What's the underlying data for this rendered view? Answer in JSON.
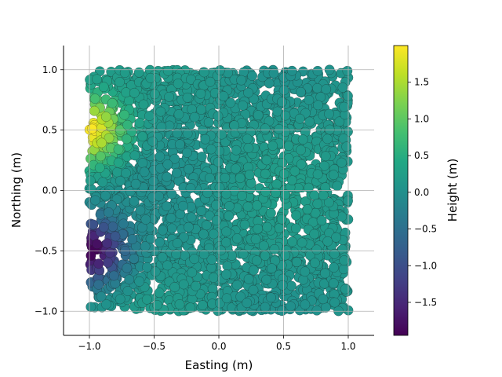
{
  "chart_data": {
    "type": "scatter",
    "title": "",
    "xlabel": "Easting (m)",
    "ylabel": "Northing (m)",
    "colorbar_label": "Height (m)",
    "xlim": [
      -1.2,
      1.2
    ],
    "ylim": [
      -1.2,
      1.2
    ],
    "xticks": [
      -1.0,
      -0.5,
      0.0,
      0.5,
      1.0
    ],
    "yticks": [
      -1.0,
      -0.5,
      0.0,
      0.5,
      1.0
    ],
    "xtick_labels": [
      "−1.0",
      "−0.5",
      "0.0",
      "0.5",
      "1.0"
    ],
    "ytick_labels": [
      "−1.0",
      "−0.5",
      "0.0",
      "0.5",
      "1.0"
    ],
    "colorbar_ticks": [
      -1.5,
      -1.0,
      -0.5,
      0.0,
      0.5,
      1.0,
      1.5
    ],
    "colorbar_tick_labels": [
      "−1.5",
      "−1.0",
      "−0.5",
      "0.0",
      "0.5",
      "1.0",
      "1.5"
    ],
    "color_range": [
      -1.95,
      2.0
    ],
    "colormap": "viridis",
    "grid": true,
    "point_domain": {
      "x": [
        -1.0,
        1.0
      ],
      "y": [
        -1.0,
        1.0
      ]
    },
    "height_field": {
      "description_units": "m",
      "features": [
        {
          "kind": "peak",
          "x": -1.0,
          "y": 0.5,
          "value": 2.0
        },
        {
          "kind": "trough",
          "x": -1.0,
          "y": -0.5,
          "value": -1.95
        }
      ],
      "background_value": 0.1
    }
  }
}
